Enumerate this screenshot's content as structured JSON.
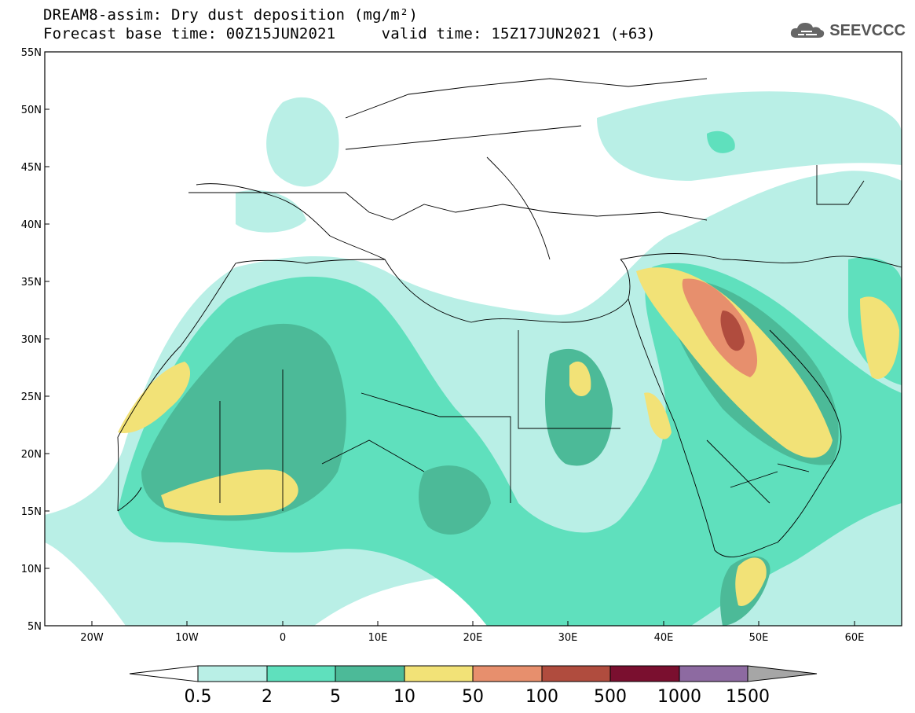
{
  "header": {
    "title": "DREAM8-assim: Dry dust deposition (mg/m²)",
    "base_time": "Forecast base time: 00Z15JUN2021",
    "valid_time": "valid time: 15Z17JUN2021 (+63)"
  },
  "logo": {
    "text": "SEEVCCC",
    "icon": "cloud-icon"
  },
  "axes": {
    "lat_labels": [
      "55N",
      "50N",
      "45N",
      "40N",
      "35N",
      "30N",
      "25N",
      "20N",
      "15N",
      "10N",
      "5N"
    ],
    "lon_labels": [
      "20W",
      "10W",
      "0",
      "10E",
      "20E",
      "30E",
      "40E",
      "50E",
      "60E"
    ]
  },
  "colorbar": {
    "labels": [
      "0.5",
      "2",
      "5",
      "10",
      "50",
      "100",
      "500",
      "1000",
      "1500"
    ],
    "colors": [
      "#b9efe6",
      "#5fe0bd",
      "#4cba98",
      "#f2e277",
      "#e78f6d",
      "#b04c3e",
      "#7a0f2f",
      "#8d6aa1",
      "#a6a6a6"
    ]
  }
}
